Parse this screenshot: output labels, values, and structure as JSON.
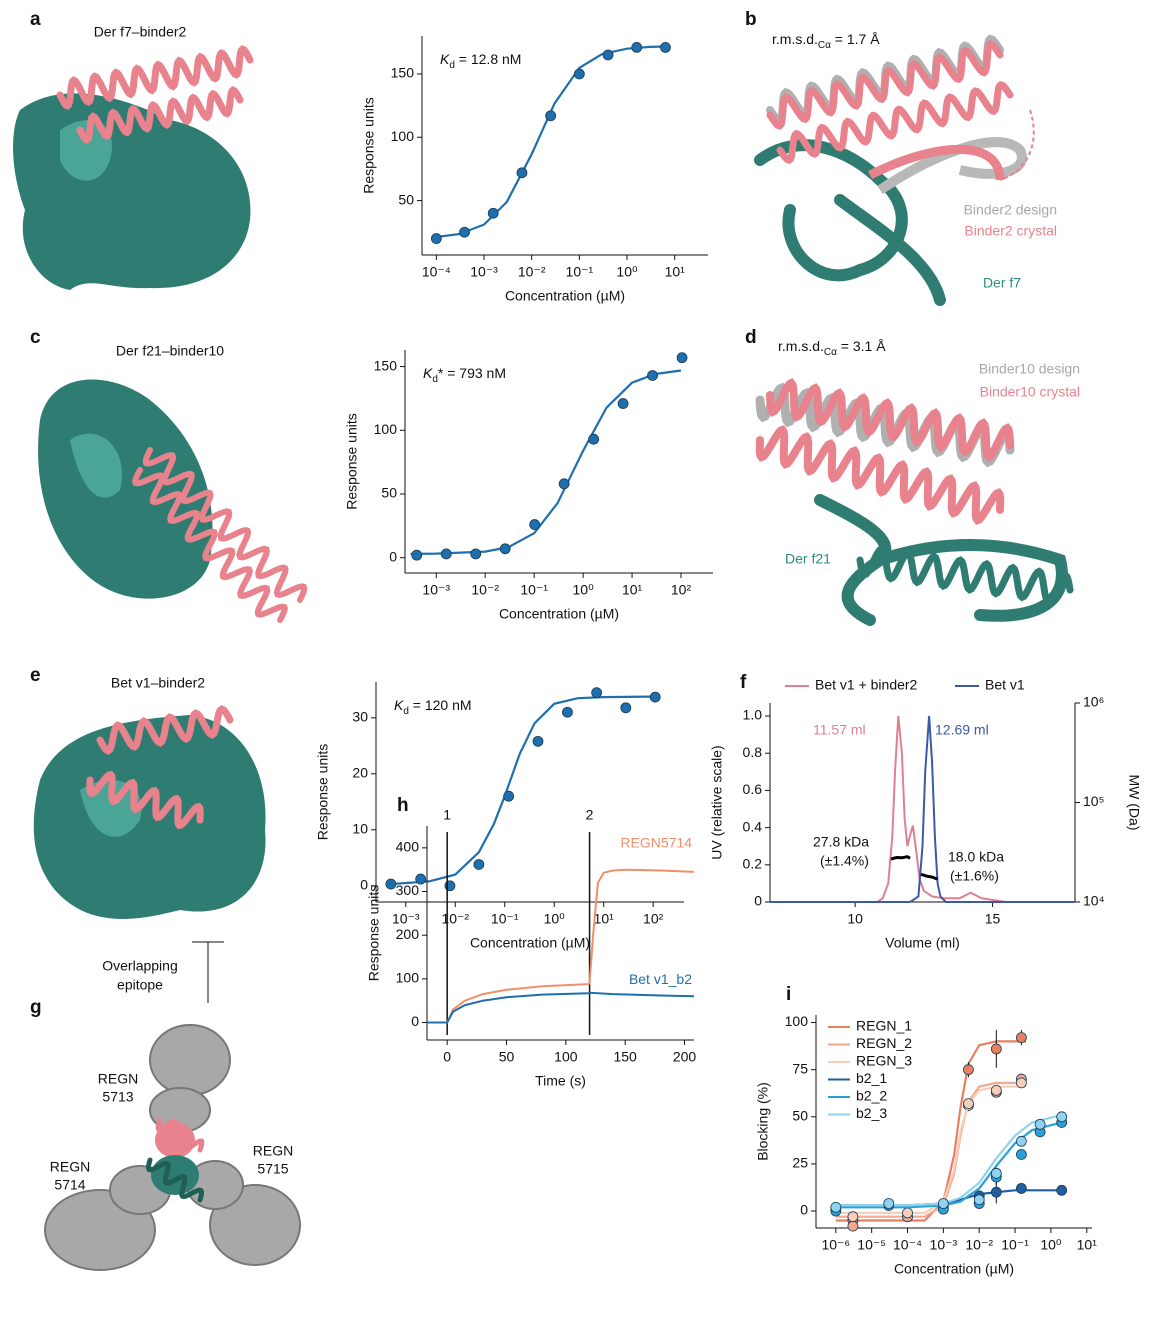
{
  "structures": [
    {
      "label": "a",
      "title": "Der f7–binder2"
    },
    {
      "label": "b",
      "rmsd": [
        "r.m.s.d.",
        "Cα",
        " = 1.7 Å"
      ],
      "legend": [
        "Binder2 design",
        "Binder2 crystal"
      ],
      "target": "Der f7"
    },
    {
      "label": "c",
      "title": "Der f21–binder10"
    },
    {
      "label": "d",
      "rmsd": [
        "r.m.s.d.",
        "Cα",
        " = 3.1 Å"
      ],
      "legend": [
        "Binder10 design",
        "Binder10 crystal"
      ],
      "target": "Der f21"
    },
    {
      "label": "e",
      "title": "Bet v1–binder2",
      "note": [
        "Overlapping",
        "epitope"
      ]
    },
    {
      "label": "g",
      "antibodies": [
        [
          "REGN",
          "5713"
        ],
        [
          "REGN",
          "5715"
        ],
        [
          "REGN",
          "5714"
        ]
      ]
    }
  ],
  "chart_data": [
    {
      "type": "scatter",
      "xscale": "log",
      "xlim": [
        5e-05,
        50
      ],
      "ylim": [
        7,
        180
      ],
      "xticks": [
        {
          "value": 0.0001,
          "label": "10⁻⁴"
        },
        {
          "value": 0.001,
          "label": "10⁻³"
        },
        {
          "value": 0.01,
          "label": "10⁻²"
        },
        {
          "value": 0.1,
          "label": "10⁻¹"
        },
        {
          "value": 1,
          "label": "10⁰"
        },
        {
          "value": 10,
          "label": "10¹"
        }
      ],
      "yticks": [
        50,
        100,
        150
      ],
      "xlabel": "Concentration (µM)",
      "ylabel": "Response units",
      "annotation": [
        "K",
        "d",
        " = 12.8 nM"
      ],
      "series": [
        {
          "color": "#1f6fae",
          "x": [
            0.0001,
            0.00039,
            0.00156,
            0.00625,
            0.025,
            0.1,
            0.4,
            1.6,
            6.4
          ],
          "values": [
            20,
            25,
            40,
            72,
            117,
            150,
            165,
            171,
            171
          ],
          "fit": {
            "x": [
              0.0001,
              0.0003,
              0.001,
              0.003,
              0.01,
              0.03,
              0.1,
              0.3,
              1,
              3,
              6.4
            ],
            "values": [
              21.2,
              23.5,
              31,
              48.9,
              86.7,
              126.5,
              154.8,
              165.8,
              170,
              171.4,
              171.7
            ]
          }
        }
      ]
    },
    {
      "type": "scatter",
      "xscale": "log",
      "xlim": [
        0.00023,
        450
      ],
      "ylim": [
        -12,
        163
      ],
      "xticks": [
        {
          "value": 0.001,
          "label": "10⁻³"
        },
        {
          "value": 0.01,
          "label": "10⁻²"
        },
        {
          "value": 0.1,
          "label": "10⁻¹"
        },
        {
          "value": 1,
          "label": "10⁰"
        },
        {
          "value": 10,
          "label": "10¹"
        },
        {
          "value": 100,
          "label": "10²"
        }
      ],
      "yticks": [
        0,
        50,
        100,
        150
      ],
      "xlabel": "Concentration (µM)",
      "ylabel": "Response units",
      "annotation": [
        "K",
        "d",
        "* = 793 nM"
      ],
      "series": [
        {
          "color": "#1f6fae",
          "x": [
            0.0004,
            0.0016,
            0.0064,
            0.0256,
            0.1024,
            0.41,
            1.64,
            6.55,
            26.2,
            104.9
          ],
          "values": [
            2,
            3,
            3,
            7,
            26,
            58,
            93,
            121,
            143,
            157
          ],
          "fit": {
            "x": [
              0.0003,
              0.001,
              0.01,
              0.03,
              0.1,
              0.3,
              1,
              3,
              10,
              30,
              100
            ],
            "values": [
              3,
              3.2,
              4.8,
              8.3,
              19.2,
              42.8,
              83.9,
              117.7,
              137.4,
              144.2,
              146.9
            ]
          }
        }
      ]
    },
    {
      "type": "scatter",
      "xscale": "log",
      "xlim": [
        0.00025,
        420
      ],
      "ylim": [
        -2.9,
        36.4
      ],
      "xticks": [
        {
          "value": 0.001,
          "label": "10⁻³"
        },
        {
          "value": 0.01,
          "label": "10⁻²"
        },
        {
          "value": 0.1,
          "label": "10⁻¹"
        },
        {
          "value": 1,
          "label": "10⁰"
        },
        {
          "value": 10,
          "label": "10¹"
        },
        {
          "value": 100,
          "label": "10²"
        }
      ],
      "yticks": [
        0,
        10,
        20,
        30
      ],
      "xlabel": "Concentration (µM)",
      "ylabel": "Response units",
      "annotation": [
        "K",
        "d",
        " = 120 nM"
      ],
      "series": [
        {
          "color": "#1f6fae",
          "x": [
            0.0005,
            0.002,
            0.0078,
            0.03,
            0.12,
            0.47,
            1.85,
            7.2,
            28,
            110
          ],
          "values": [
            0.3,
            1.2,
            0,
            3.8,
            16,
            25.8,
            31,
            34.5,
            31.8,
            33.7
          ],
          "fit": {
            "x": [
              0.0005,
              0.003,
              0.01,
              0.03,
              0.06,
              0.1,
              0.2,
              0.4,
              1,
              3,
              10,
              100
            ],
            "values": [
              0.3,
              0.8,
              2,
              6,
              11,
              16,
              23.5,
              29,
              32.5,
              33.5,
              33.7,
              33.8
            ]
          }
        }
      ]
    },
    {
      "type": "line",
      "panel": "f",
      "xlim": [
        6.9,
        18
      ],
      "ylim": [
        0,
        1.07
      ],
      "y2scale": "log",
      "y2lim": [
        10000,
        1000000
      ],
      "xticks": [
        10,
        15
      ],
      "yticks": [
        0,
        0.2,
        0.4,
        0.6,
        0.8,
        {
          "value": 1,
          "label": "1.0"
        }
      ],
      "y2ticks": [
        {
          "value": 10000,
          "label": "10⁴"
        },
        {
          "value": 100000,
          "label": "10⁵"
        },
        {
          "value": 1000000,
          "label": "10⁶"
        }
      ],
      "xlabel": "Volume (ml)",
      "ylabel": "UV (relative scale)",
      "y2label": "MW (Da)",
      "legend": "top",
      "annotations": [
        "11.57 ml",
        "12.69 ml",
        "27.8 kDa",
        "(±1.4%)",
        "18.0 kDa",
        "(±1.6%)"
      ],
      "series": [
        {
          "name": "Bet v1 + binder2",
          "color": "#e07f94",
          "x": [
            6.9,
            10.8,
            11.0,
            11.2,
            11.35,
            11.45,
            11.57,
            11.7,
            11.8,
            11.9,
            12.0,
            12.1,
            12.2,
            12.35,
            12.5,
            12.8,
            13.2,
            13.8,
            14.2,
            14.6,
            15.5,
            18
          ],
          "values": [
            0,
            0,
            0.02,
            0.1,
            0.35,
            0.7,
            1.0,
            0.8,
            0.45,
            0.3,
            0.36,
            0.41,
            0.3,
            0.12,
            0.06,
            0.03,
            0.02,
            0.02,
            0.05,
            0.02,
            0,
            0
          ]
        },
        {
          "name": "Bet v1",
          "color": "#3a5aa8",
          "x": [
            6.9,
            12.0,
            12.3,
            12.45,
            12.55,
            12.69,
            12.8,
            12.9,
            13.0,
            13.1,
            13.3,
            18
          ],
          "values": [
            0,
            0,
            0.03,
            0.3,
            0.7,
            1.0,
            0.75,
            0.35,
            0.1,
            0.03,
            0,
            0
          ]
        },
        {
          "color": "#000000",
          "axis": "y2",
          "x": [
            11.3,
            11.5,
            11.7,
            11.9,
            12.0
          ],
          "values": [
            27000,
            28000,
            27800,
            28500,
            27500
          ]
        },
        {
          "color": "#000000",
          "axis": "y2",
          "x": [
            12.4,
            12.6,
            12.8,
            13.0
          ],
          "values": [
            19000,
            18200,
            17800,
            17000
          ]
        }
      ]
    },
    {
      "type": "line",
      "panel": "h",
      "xlim": [
        -17,
        208
      ],
      "ylim": [
        -40,
        450
      ],
      "xticks": [
        0,
        50,
        100,
        150,
        200
      ],
      "yticks": [
        0,
        100,
        200,
        300,
        400
      ],
      "xlabel": "Time (s)",
      "ylabel": "Response units",
      "legend": "inline",
      "vlines": [
        {
          "value": 0,
          "label": "1"
        },
        {
          "value": 120,
          "label": "2"
        }
      ],
      "series": [
        {
          "name": "REGN5714",
          "color": "#f0906a",
          "x": [
            -17,
            0,
            5,
            15,
            30,
            50,
            80,
            119,
            120,
            123,
            127,
            132,
            140,
            150,
            180,
            208
          ],
          "values": [
            0,
            0,
            30,
            50,
            65,
            75,
            83,
            88,
            90,
            200,
            320,
            343,
            348,
            350,
            348,
            345
          ]
        },
        {
          "name": "Bet v1_b2",
          "color": "#1f6fae",
          "x": [
            -17,
            0,
            5,
            15,
            30,
            50,
            80,
            119,
            120,
            140,
            180,
            208
          ],
          "values": [
            0,
            0,
            25,
            40,
            50,
            58,
            64,
            67,
            68,
            65,
            62,
            60
          ]
        }
      ]
    },
    {
      "type": "scatter",
      "panel": "i",
      "xscale": "log",
      "xlim": [
        2.8e-07,
        14
      ],
      "ylim": [
        -9,
        104
      ],
      "xticks": [
        {
          "value": 1e-06,
          "label": "10⁻⁶"
        },
        {
          "value": 1e-05,
          "label": "10⁻⁵"
        },
        {
          "value": 0.0001,
          "label": "10⁻⁴"
        },
        {
          "value": 0.001,
          "label": "10⁻³"
        },
        {
          "value": 0.01,
          "label": "10⁻²"
        },
        {
          "value": 0.1,
          "label": "10⁻¹"
        },
        {
          "value": 1,
          "label": "10⁰"
        },
        {
          "value": 10,
          "label": "10¹"
        }
      ],
      "yticks": [
        0,
        25,
        50,
        75,
        100
      ],
      "xlabel": "Concentration (µM)",
      "ylabel": "Blocking (%)",
      "legend": "top-left",
      "series": [
        {
          "name": "REGN_1",
          "color": "#e8805f",
          "x": [
            3e-06,
            0.0001,
            0.005,
            0.03,
            0.15
          ],
          "values": [
            -5,
            -3,
            75,
            86,
            92
          ],
          "errors": [
            1,
            1,
            4,
            10,
            4
          ],
          "fit": {
            "x": [
              1e-06,
              0.0003,
              0.001,
              0.002,
              0.003,
              0.005,
              0.01,
              0.03,
              0.2
            ],
            "values": [
              -5,
              -5,
              5,
              30,
              55,
              78,
              88,
              90,
              90
            ]
          }
        },
        {
          "name": "REGN_2",
          "color": "#f3a98d",
          "x": [
            3e-06,
            0.0001,
            0.005,
            0.03,
            0.15
          ],
          "values": [
            -8,
            -3,
            56,
            63,
            70
          ],
          "errors": [
            1,
            1,
            3,
            2,
            3
          ],
          "fit": {
            "x": [
              1e-06,
              0.0003,
              0.001,
              0.002,
              0.003,
              0.005,
              0.01,
              0.03,
              0.2
            ],
            "values": [
              -3,
              -3,
              3,
              20,
              40,
              58,
              66,
              68,
              68
            ]
          }
        },
        {
          "name": "REGN_3",
          "color": "#f8cdb9",
          "x": [
            3e-06,
            0.0001,
            0.005,
            0.03,
            0.15
          ],
          "values": [
            -3,
            -1,
            57,
            64,
            68
          ],
          "errors": [
            1,
            1,
            2,
            2,
            2
          ],
          "fit": {
            "x": [
              1e-06,
              0.0003,
              0.001,
              0.002,
              0.003,
              0.005,
              0.01,
              0.03,
              0.2
            ],
            "values": [
              -1,
              -1,
              5,
              22,
              42,
              57,
              64,
              66,
              66
            ]
          }
        },
        {
          "name": "b2_1",
          "color": "#1f5fa0",
          "x": [
            1e-06,
            3e-05,
            0.001,
            0.01,
            0.03,
            0.15,
            2
          ],
          "values": [
            1,
            3,
            2,
            8,
            10,
            12,
            11
          ],
          "errors": [
            1,
            2,
            1,
            2,
            6,
            1,
            2
          ],
          "fit": {
            "x": [
              1e-06,
              0.0001,
              0.001,
              0.003,
              0.01,
              0.03,
              0.1,
              0.3,
              2
            ],
            "values": [
              3,
              3,
              4,
              6,
              9,
              10,
              11,
              11,
              11
            ]
          }
        },
        {
          "name": "b2_2",
          "color": "#2aa0d8",
          "x": [
            1e-06,
            3e-05,
            0.001,
            0.01,
            0.03,
            0.15,
            0.5,
            2
          ],
          "values": [
            0,
            3,
            1,
            4,
            18,
            30,
            42,
            47
          ],
          "errors": [
            1,
            1,
            1,
            2,
            4,
            2,
            2,
            2
          ],
          "fit": {
            "x": [
              1e-06,
              0.0001,
              0.001,
              0.003,
              0.01,
              0.03,
              0.1,
              0.3,
              2
            ],
            "values": [
              2,
              2,
              3,
              5,
              12,
              24,
              36,
              43,
              47
            ]
          }
        },
        {
          "name": "b2_3",
          "color": "#8fd3f0",
          "x": [
            1e-06,
            3e-05,
            0.001,
            0.01,
            0.03,
            0.15,
            0.5,
            2
          ],
          "values": [
            2,
            4,
            4,
            6,
            20,
            37,
            46,
            50
          ],
          "errors": [
            1,
            1,
            1,
            2,
            3,
            2,
            2,
            2
          ],
          "fit": {
            "x": [
              1e-06,
              0.0001,
              0.001,
              0.003,
              0.01,
              0.03,
              0.1,
              0.3,
              2
            ],
            "values": [
              3,
              3,
              4,
              7,
              15,
              28,
              40,
              47,
              51
            ]
          }
        }
      ]
    }
  ]
}
